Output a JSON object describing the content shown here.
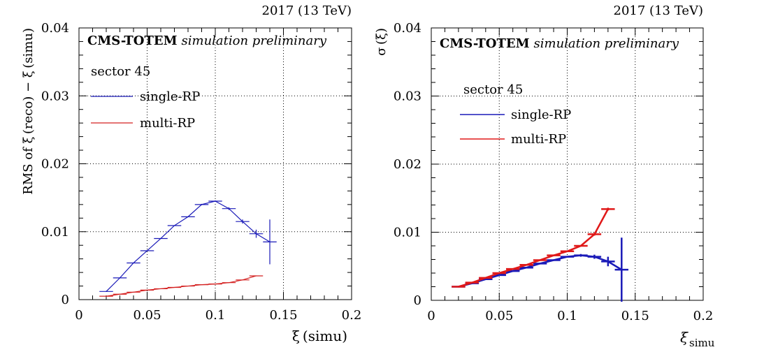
{
  "chart_data": [
    {
      "type": "line",
      "energy_label": "2017 (13 TeV)",
      "title_bold": "CMS-TOTEM",
      "title_italic": "simulation preliminary",
      "xlabel": "ξ (simu)",
      "ylabel": "RMS of ξ (reco) − ξ (simu)",
      "xlim": [
        0,
        0.2
      ],
      "ylim": [
        0,
        0.04
      ],
      "x_ticks": [
        "0",
        "0.05",
        "0.1",
        "0.15",
        "0.2"
      ],
      "y_ticks": [
        "0",
        "0.01",
        "0.02",
        "0.03",
        "0.04"
      ],
      "grid": "dotted",
      "legend_header": "sector 45",
      "series": [
        {
          "name": "single-RP",
          "color": "#1a1ab8",
          "line_width": 1.2,
          "points": [
            {
              "x": 0.02,
              "y": 0.0012,
              "yerr": 5e-05
            },
            {
              "x": 0.03,
              "y": 0.0032,
              "yerr": 5e-05
            },
            {
              "x": 0.04,
              "y": 0.0054,
              "yerr": 5e-05
            },
            {
              "x": 0.05,
              "y": 0.0072,
              "yerr": 5e-05
            },
            {
              "x": 0.06,
              "y": 0.009,
              "yerr": 5e-05
            },
            {
              "x": 0.07,
              "y": 0.0109,
              "yerr": 5e-05
            },
            {
              "x": 0.08,
              "y": 0.0122,
              "yerr": 5e-05
            },
            {
              "x": 0.09,
              "y": 0.014,
              "yerr": 0.0001
            },
            {
              "x": 0.1,
              "y": 0.0145,
              "yerr": 0.0001
            },
            {
              "x": 0.11,
              "y": 0.0134,
              "yerr": 0.0002
            },
            {
              "x": 0.12,
              "y": 0.0115,
              "yerr": 0.0003
            },
            {
              "x": 0.13,
              "y": 0.0097,
              "yerr": 0.0006
            },
            {
              "x": 0.14,
              "y": 0.0085,
              "yerr": 0.0033
            }
          ]
        },
        {
          "name": "multi-RP",
          "color": "#d42020",
          "line_width": 1.2,
          "points": [
            {
              "x": 0.02,
              "y": 0.0005,
              "yerr": 3e-05
            },
            {
              "x": 0.03,
              "y": 0.0008,
              "yerr": 3e-05
            },
            {
              "x": 0.04,
              "y": 0.0011,
              "yerr": 3e-05
            },
            {
              "x": 0.05,
              "y": 0.0014,
              "yerr": 3e-05
            },
            {
              "x": 0.06,
              "y": 0.0016,
              "yerr": 3e-05
            },
            {
              "x": 0.07,
              "y": 0.0018,
              "yerr": 3e-05
            },
            {
              "x": 0.08,
              "y": 0.002,
              "yerr": 3e-05
            },
            {
              "x": 0.09,
              "y": 0.0022,
              "yerr": 3e-05
            },
            {
              "x": 0.1,
              "y": 0.0023,
              "yerr": 3e-05
            },
            {
              "x": 0.11,
              "y": 0.0025,
              "yerr": 3e-05
            },
            {
              "x": 0.12,
              "y": 0.0029,
              "yerr": 3e-05
            },
            {
              "x": 0.13,
              "y": 0.0035,
              "yerr": 5e-05
            }
          ]
        }
      ]
    },
    {
      "type": "line",
      "energy_label": "2017 (13 TeV)",
      "title_bold": "CMS-TOTEM",
      "title_italic": "simulation preliminary",
      "xlabel": "ξ",
      "xlabel_sub": "simu",
      "ylabel": "σ (ξ)",
      "xlim": [
        0,
        0.2
      ],
      "ylim": [
        0,
        0.04
      ],
      "x_ticks": [
        "0",
        "0.05",
        "0.1",
        "0.15",
        "0.2"
      ],
      "y_ticks": [
        "0",
        "0.01",
        "0.02",
        "0.03",
        "0.04"
      ],
      "grid": "dotted",
      "legend_header": "sector 45",
      "series": [
        {
          "name": "single-RP",
          "color": "#1a1ab8",
          "line_width": 2.5,
          "points": [
            {
              "x": 0.02,
              "y": 0.002,
              "yerr": 0.0001
            },
            {
              "x": 0.03,
              "y": 0.0025,
              "yerr": 0.0001
            },
            {
              "x": 0.04,
              "y": 0.0031,
              "yerr": 0.0001
            },
            {
              "x": 0.05,
              "y": 0.0037,
              "yerr": 0.0001
            },
            {
              "x": 0.06,
              "y": 0.0043,
              "yerr": 0.0001
            },
            {
              "x": 0.07,
              "y": 0.0048,
              "yerr": 0.0001
            },
            {
              "x": 0.08,
              "y": 0.0054,
              "yerr": 0.0001
            },
            {
              "x": 0.09,
              "y": 0.0059,
              "yerr": 0.0001
            },
            {
              "x": 0.1,
              "y": 0.0064,
              "yerr": 0.0001
            },
            {
              "x": 0.11,
              "y": 0.0066,
              "yerr": 0.0002
            },
            {
              "x": 0.12,
              "y": 0.0064,
              "yerr": 0.0003
            },
            {
              "x": 0.13,
              "y": 0.0057,
              "yerr": 0.0007
            },
            {
              "x": 0.14,
              "y": 0.0045,
              "yerr": 0.0047
            }
          ]
        },
        {
          "name": "multi-RP",
          "color": "#e01818",
          "line_width": 2.5,
          "points": [
            {
              "x": 0.02,
              "y": 0.002,
              "yerr": 0.0001
            },
            {
              "x": 0.03,
              "y": 0.0026,
              "yerr": 0.0001
            },
            {
              "x": 0.04,
              "y": 0.0033,
              "yerr": 0.0001
            },
            {
              "x": 0.05,
              "y": 0.004,
              "yerr": 0.0001
            },
            {
              "x": 0.06,
              "y": 0.0046,
              "yerr": 0.0001
            },
            {
              "x": 0.07,
              "y": 0.0052,
              "yerr": 0.0001
            },
            {
              "x": 0.08,
              "y": 0.0059,
              "yerr": 0.0001
            },
            {
              "x": 0.09,
              "y": 0.0066,
              "yerr": 0.0001
            },
            {
              "x": 0.1,
              "y": 0.0072,
              "yerr": 0.0001
            },
            {
              "x": 0.11,
              "y": 0.008,
              "yerr": 0.0001
            },
            {
              "x": 0.12,
              "y": 0.0097,
              "yerr": 0.0002
            },
            {
              "x": 0.13,
              "y": 0.0134,
              "yerr": 0.0002
            }
          ]
        }
      ]
    }
  ]
}
